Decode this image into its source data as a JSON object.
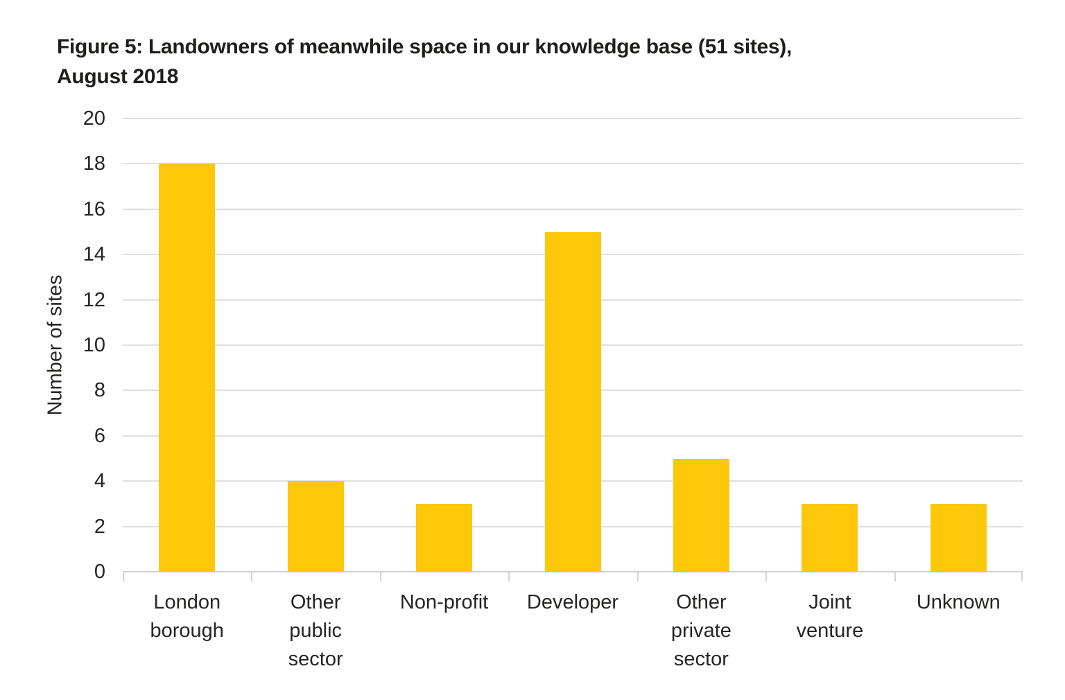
{
  "title_line1": "Figure 5: Landowners of meanwhile space in our knowledge base (51 sites),",
  "title_line2": "August 2018",
  "chart_data": {
    "type": "bar",
    "title": "Figure 5: Landowners of meanwhile space in our knowledge base (51 sites), August 2018",
    "categories": [
      "London borough",
      "Other public sector",
      "Non-profit",
      "Developer",
      "Other private sector",
      "Joint venture",
      "Unknown"
    ],
    "category_label_lines": [
      [
        "London",
        "borough"
      ],
      [
        "Other",
        "public",
        "sector"
      ],
      [
        "Non-profit"
      ],
      [
        "Developer"
      ],
      [
        "Other",
        "private",
        "sector"
      ],
      [
        "Joint",
        "venture"
      ],
      [
        "Unknown"
      ]
    ],
    "values": [
      18,
      4,
      3,
      15,
      5,
      3,
      3
    ],
    "total_sites": 51,
    "xlabel": "",
    "ylabel": "Number of sites",
    "ylim": [
      0,
      20
    ],
    "yticks": [
      0,
      2,
      4,
      6,
      8,
      10,
      12,
      14,
      16,
      18,
      20
    ],
    "grid": "horizontal",
    "legend": "none",
    "bar_color": "#FDC70A"
  },
  "colors": {
    "bar": "#FDC70A",
    "gridline": "#DFDFDF",
    "axis": "#D2D2D2",
    "text": "#262523",
    "title": "#1E1E1C",
    "background": "#FFFFFF"
  }
}
